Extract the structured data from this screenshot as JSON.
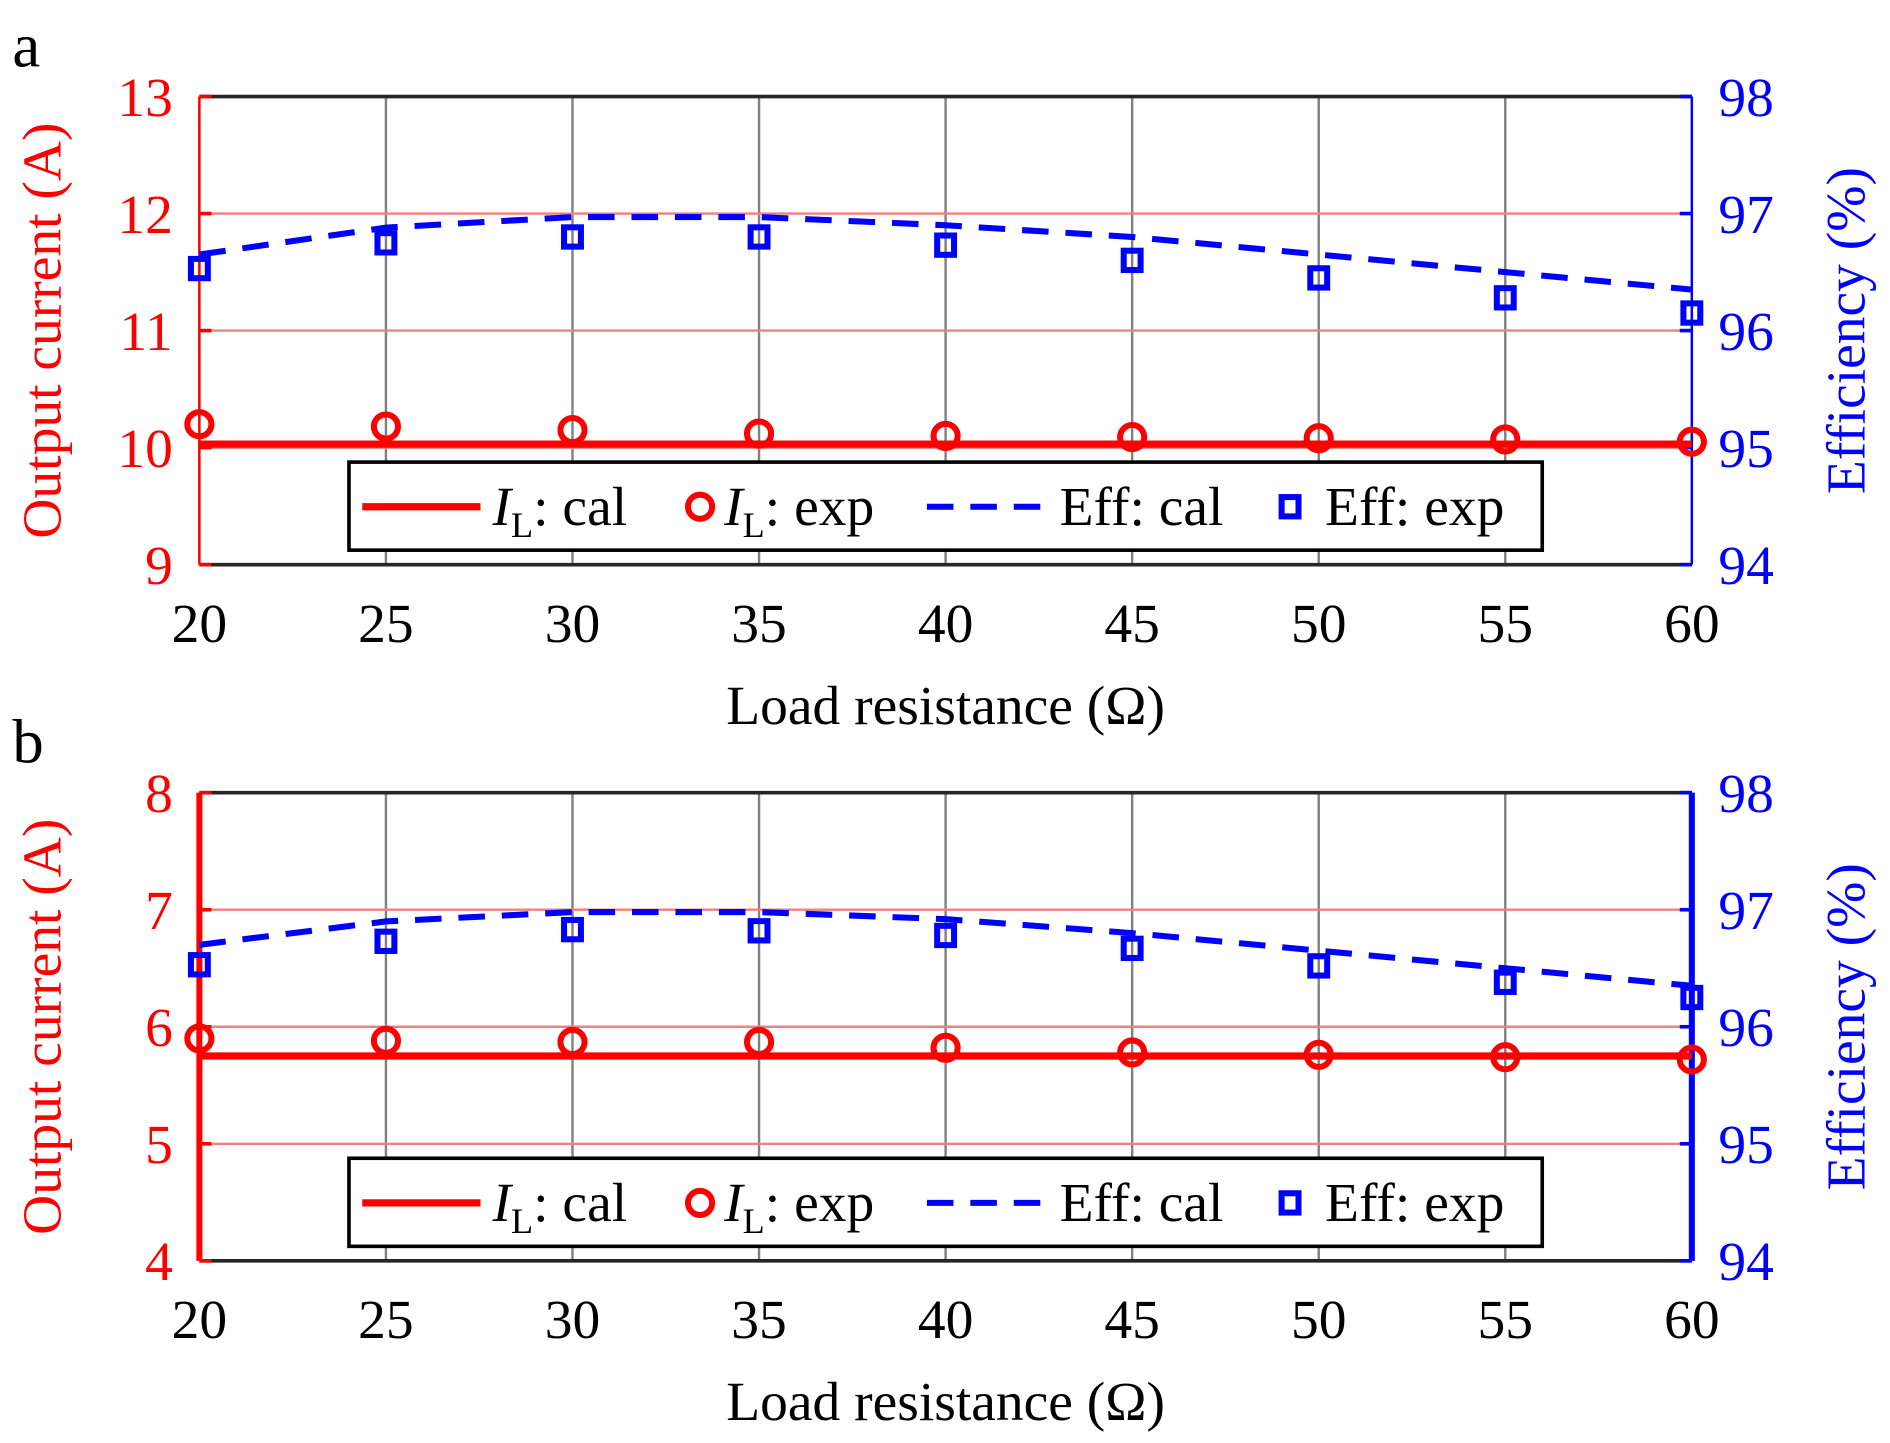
{
  "chart_data": [
    {
      "panel_label": "a",
      "type": "line",
      "x": [
        20,
        25,
        30,
        35,
        40,
        45,
        50,
        55,
        60
      ],
      "xlabel": "Load resistance (Ω)",
      "xlim": [
        20,
        60
      ],
      "xticks": [
        20,
        25,
        30,
        35,
        40,
        45,
        50,
        55,
        60
      ],
      "ylabel_left": "Output current (A)",
      "ylim_left": [
        9,
        13
      ],
      "yticks_left": [
        9,
        10,
        11,
        12,
        13
      ],
      "ylabel_right": "Efficiency (%)",
      "ylim_right": [
        94,
        98
      ],
      "yticks_right": [
        94,
        95,
        96,
        97,
        98
      ],
      "grid": true,
      "legend_position": "bottom-center",
      "series": [
        {
          "name": "I_L: cal",
          "axis": "left",
          "style": "solid",
          "color": "#ff0000",
          "values": [
            10.03,
            10.03,
            10.03,
            10.03,
            10.03,
            10.03,
            10.03,
            10.03,
            10.03
          ]
        },
        {
          "name": "I_L: exp",
          "axis": "left",
          "style": "circle",
          "color": "#ff0000",
          "values": [
            10.2,
            10.18,
            10.15,
            10.12,
            10.1,
            10.09,
            10.08,
            10.07,
            10.05
          ]
        },
        {
          "name": "Eff: cal",
          "axis": "right",
          "style": "dashed",
          "color": "#0000ff",
          "values": [
            96.65,
            96.88,
            96.97,
            96.97,
            96.9,
            96.8,
            96.65,
            96.5,
            96.35
          ]
        },
        {
          "name": "Eff: exp",
          "axis": "right",
          "style": "square",
          "color": "#0000ff",
          "values": [
            96.53,
            96.75,
            96.8,
            96.8,
            96.73,
            96.6,
            96.45,
            96.28,
            96.15
          ]
        }
      ]
    },
    {
      "panel_label": "b",
      "type": "line",
      "x": [
        20,
        25,
        30,
        35,
        40,
        45,
        50,
        55,
        60
      ],
      "xlabel": "Load resistance (Ω)",
      "xlim": [
        20,
        60
      ],
      "xticks": [
        20,
        25,
        30,
        35,
        40,
        45,
        50,
        55,
        60
      ],
      "ylabel_left": "Output current (A)",
      "ylim_left": [
        4,
        8
      ],
      "yticks_left": [
        4,
        5,
        6,
        7,
        8
      ],
      "ylabel_right": "Efficiency (%)",
      "ylim_right": [
        94,
        98
      ],
      "yticks_right": [
        94,
        95,
        96,
        97,
        98
      ],
      "grid": true,
      "legend_position": "bottom-center",
      "series": [
        {
          "name": "I_L: cal",
          "axis": "left",
          "style": "solid",
          "color": "#ff0000",
          "values": [
            5.75,
            5.75,
            5.75,
            5.75,
            5.75,
            5.75,
            5.75,
            5.75,
            5.75
          ]
        },
        {
          "name": "I_L: exp",
          "axis": "left",
          "style": "circle",
          "color": "#ff0000",
          "values": [
            5.9,
            5.88,
            5.87,
            5.87,
            5.82,
            5.78,
            5.76,
            5.74,
            5.72
          ]
        },
        {
          "name": "Eff: cal",
          "axis": "right",
          "style": "dashed",
          "color": "#0000ff",
          "values": [
            96.7,
            96.9,
            96.98,
            96.98,
            96.92,
            96.8,
            96.65,
            96.5,
            96.35
          ]
        },
        {
          "name": "Eff: exp",
          "axis": "right",
          "style": "square",
          "color": "#0000ff",
          "values": [
            96.53,
            96.73,
            96.83,
            96.82,
            96.78,
            96.67,
            96.52,
            96.38,
            96.25
          ]
        }
      ]
    }
  ],
  "legend": {
    "il_cal": {
      "italic": "I",
      "sub": "L",
      "rest": ": cal"
    },
    "il_exp": {
      "italic": "I",
      "sub": "L",
      "rest": ": exp"
    },
    "eff_cal": "Eff: cal",
    "eff_exp": "Eff: exp"
  },
  "colors": {
    "left_axis": "#ff0000",
    "right_axis": "#0000ff",
    "grid": "#808080",
    "left_grid": "#f08080"
  }
}
